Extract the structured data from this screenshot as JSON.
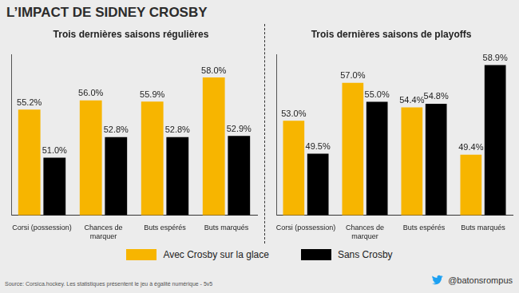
{
  "title": "L’IMPACT DE SIDNEY CROSBY",
  "source": "Source: Corsica.hockey. Les statistiques présentent le jeu à égalité numérique - 5v5",
  "handle": "@batonsrompus",
  "legend": "bottom",
  "chart_data": [
    {
      "type": "bar",
      "title": "Trois dernières saisons régulières",
      "categories": [
        "Corsi (possession)",
        "Chances de marquer",
        "Buts espérés",
        "Buts marqués"
      ],
      "series": [
        {
          "name": "Avec Crosby sur la glace",
          "color": "#f7b500",
          "values": [
            55.2,
            56.0,
            55.9,
            58.0
          ],
          "value_labels": [
            "55.2%",
            "56.0%",
            "55.9%",
            "58.0%"
          ]
        },
        {
          "name": "Sans Crosby",
          "color": "#000000",
          "values": [
            51.0,
            52.8,
            52.8,
            52.9
          ],
          "value_labels": [
            "51.0%",
            "52.8%",
            "52.8%",
            "52.9%"
          ]
        }
      ],
      "ylim": [
        46,
        60
      ],
      "grid": false,
      "data_labels": true,
      "tick_labels": "x"
    },
    {
      "type": "bar",
      "title": "Trois dernières saisons de playoffs",
      "categories": [
        "Corsi (possession)",
        "Chances de marquer",
        "Buts espérés",
        "Buts marqués"
      ],
      "series": [
        {
          "name": "Avec Crosby sur la glace",
          "color": "#f7b500",
          "values": [
            53.0,
            57.0,
            54.4,
            49.4
          ],
          "value_labels": [
            "53.0%",
            "57.0%",
            "54.4%",
            "49.4%"
          ]
        },
        {
          "name": "Sans Crosby",
          "color": "#000000",
          "values": [
            49.5,
            55.0,
            54.8,
            58.9
          ],
          "value_labels": [
            "49.5%",
            "55.0%",
            "54.8%",
            "58.9%"
          ]
        }
      ],
      "ylim": [
        43,
        60
      ],
      "grid": false,
      "data_labels": true,
      "tick_labels": "x"
    }
  ]
}
